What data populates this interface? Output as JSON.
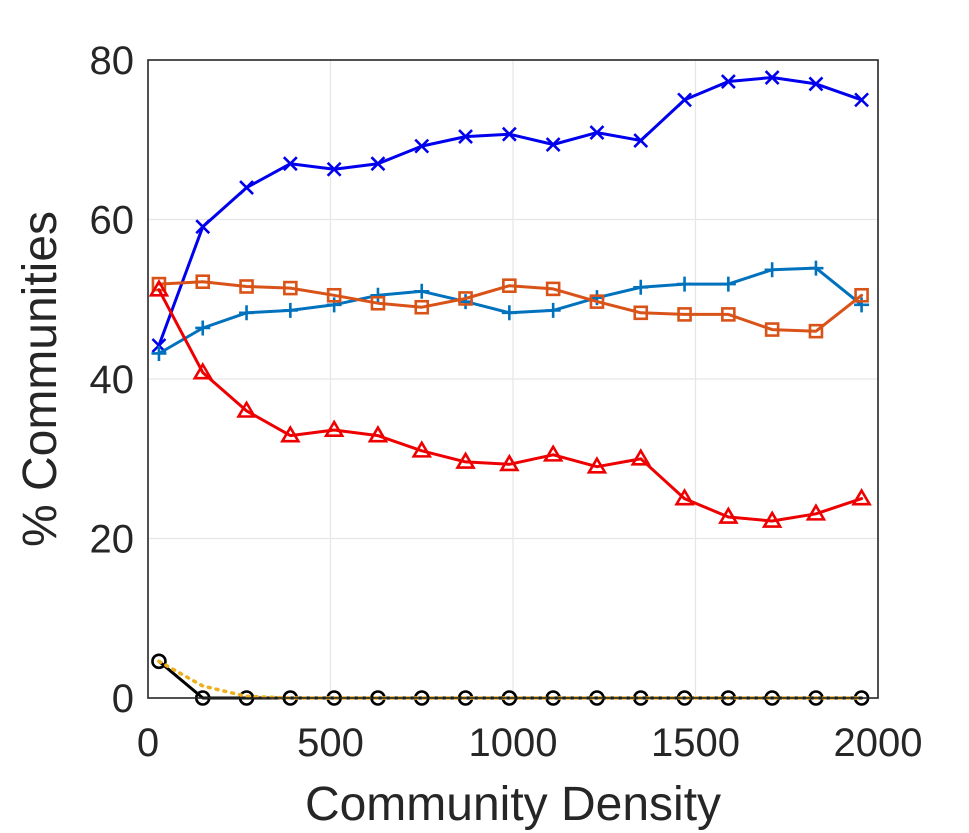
{
  "chart_data": {
    "type": "line",
    "title": "",
    "xlabel": "Community Density",
    "ylabel": "% Communities",
    "xlim": [
      0,
      2000
    ],
    "ylim": [
      0,
      80
    ],
    "xticks": [
      "0",
      "500",
      "1000",
      "1500",
      "2000"
    ],
    "yticks": [
      "0",
      "20",
      "40",
      "60",
      "80"
    ],
    "grid": true,
    "legend": "none",
    "x": [
      30,
      150,
      270,
      390,
      510,
      630,
      750,
      870,
      990,
      1110,
      1230,
      1350,
      1470,
      1590,
      1710,
      1830,
      1955
    ],
    "series": [
      {
        "color": "#0000ee",
        "marker": "x",
        "dash": "solid",
        "values": [
          44.2,
          59.1,
          64.0,
          67.0,
          66.3,
          67.0,
          69.2,
          70.4,
          70.7,
          69.4,
          70.9,
          69.9,
          75.0,
          77.3,
          77.8,
          77.0,
          75.0
        ]
      },
      {
        "color": "#0072bd",
        "marker": "plus",
        "dash": "solid",
        "values": [
          43.2,
          46.4,
          48.3,
          48.6,
          49.3,
          50.5,
          51.0,
          49.7,
          48.3,
          48.6,
          50.2,
          51.5,
          51.9,
          51.9,
          53.7,
          53.9,
          49.3
        ]
      },
      {
        "color": "#d95319",
        "marker": "square",
        "dash": "solid",
        "values": [
          51.9,
          52.2,
          51.6,
          51.4,
          50.5,
          49.5,
          49.0,
          50.1,
          51.7,
          51.3,
          49.7,
          48.3,
          48.1,
          48.1,
          46.2,
          46.0,
          50.5
        ]
      },
      {
        "color": "#ee0000",
        "marker": "triangle",
        "dash": "solid",
        "values": [
          51.2,
          40.8,
          36.0,
          32.9,
          33.6,
          32.9,
          31.0,
          29.6,
          29.3,
          30.5,
          29.0,
          30.0,
          25.0,
          22.7,
          22.2,
          23.1,
          25.0
        ]
      },
      {
        "color": "#000000",
        "marker": "circle",
        "dash": "solid",
        "values": [
          4.6,
          0.0,
          0.0,
          0.0,
          0.0,
          0.0,
          0.0,
          0.0,
          0.0,
          0.0,
          0.0,
          0.0,
          0.0,
          0.0,
          0.0,
          0.0,
          0.0
        ]
      },
      {
        "color": "#edb120",
        "marker": "none",
        "dash": "dotted",
        "values": [
          4.6,
          1.5,
          0.2,
          0.0,
          0.0,
          0.0,
          0.0,
          0.0,
          0.0,
          0.0,
          0.0,
          0.0,
          0.0,
          0.0,
          0.0,
          0.0,
          0.0
        ]
      }
    ]
  }
}
